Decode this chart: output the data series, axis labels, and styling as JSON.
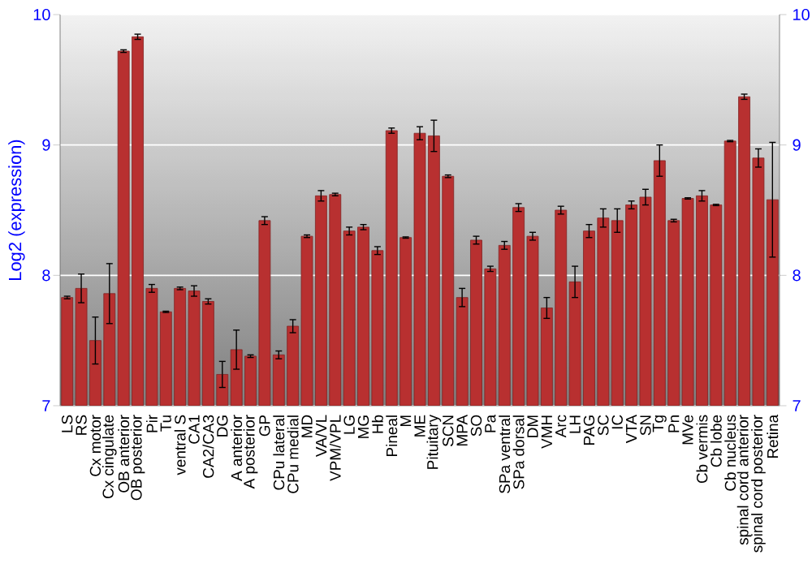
{
  "chart_data": {
    "type": "bar",
    "ylabel": "Log2 (expression)",
    "categories": [
      "LS",
      "RS",
      "Cx motor",
      "Cx cingulate",
      "OB anterior",
      "OB posterior",
      "Pir",
      "Tu",
      "ventral S",
      "CA1",
      "CA2/CA3",
      "DG",
      "A anterior",
      "A posterior",
      "GP",
      "CPu lateral",
      "CPu medial",
      "MD",
      "VA/VL",
      "VPM/VPL",
      "LG",
      "MG",
      "Hb",
      "Pineal",
      "M",
      "ME",
      "Pituitary",
      "SCN",
      "MPA",
      "SO",
      "Pa",
      "SPa ventral",
      "SPa dorsal",
      "DM",
      "VMH",
      "Arc",
      "LH",
      "PAG",
      "SC",
      "IC",
      "VTA",
      "SN",
      "Tg",
      "Pn",
      "MVe",
      "Cb vermis",
      "Cb lobe",
      "Cb nucleus",
      "spinal cord anterior",
      "spinal cord posterior",
      "Retina"
    ],
    "values": [
      7.83,
      7.9,
      7.5,
      7.86,
      9.72,
      9.83,
      7.9,
      7.72,
      7.9,
      7.88,
      7.8,
      7.24,
      7.43,
      7.38,
      8.42,
      7.39,
      7.61,
      8.3,
      8.61,
      8.62,
      8.34,
      8.37,
      8.19,
      9.11,
      8.29,
      9.09,
      9.07,
      8.76,
      7.83,
      8.27,
      8.05,
      8.23,
      8.52,
      8.3,
      7.75,
      8.5,
      7.95,
      8.34,
      8.44,
      8.42,
      8.54,
      8.6,
      8.88,
      8.42,
      8.59,
      8.61,
      8.54,
      9.03,
      9.37,
      8.9,
      8.58
    ],
    "errors": [
      0.01,
      0.11,
      0.18,
      0.23,
      0.01,
      0.02,
      0.03,
      0.005,
      0.01,
      0.04,
      0.02,
      0.1,
      0.15,
      0.01,
      0.03,
      0.03,
      0.05,
      0.01,
      0.04,
      0.01,
      0.03,
      0.02,
      0.03,
      0.02,
      0.005,
      0.05,
      0.12,
      0.01,
      0.07,
      0.03,
      0.02,
      0.03,
      0.03,
      0.03,
      0.08,
      0.03,
      0.12,
      0.05,
      0.07,
      0.09,
      0.03,
      0.06,
      0.12,
      0.01,
      0.005,
      0.04,
      0.005,
      0.005,
      0.02,
      0.07,
      0.44
    ],
    "color": "#b83030",
    "ylim": [
      7,
      10
    ],
    "yticks": [
      7,
      8,
      9,
      10
    ],
    "y2lim": [
      7,
      10
    ],
    "y2ticks": [
      7,
      8,
      9,
      10
    ],
    "grid": "y"
  }
}
